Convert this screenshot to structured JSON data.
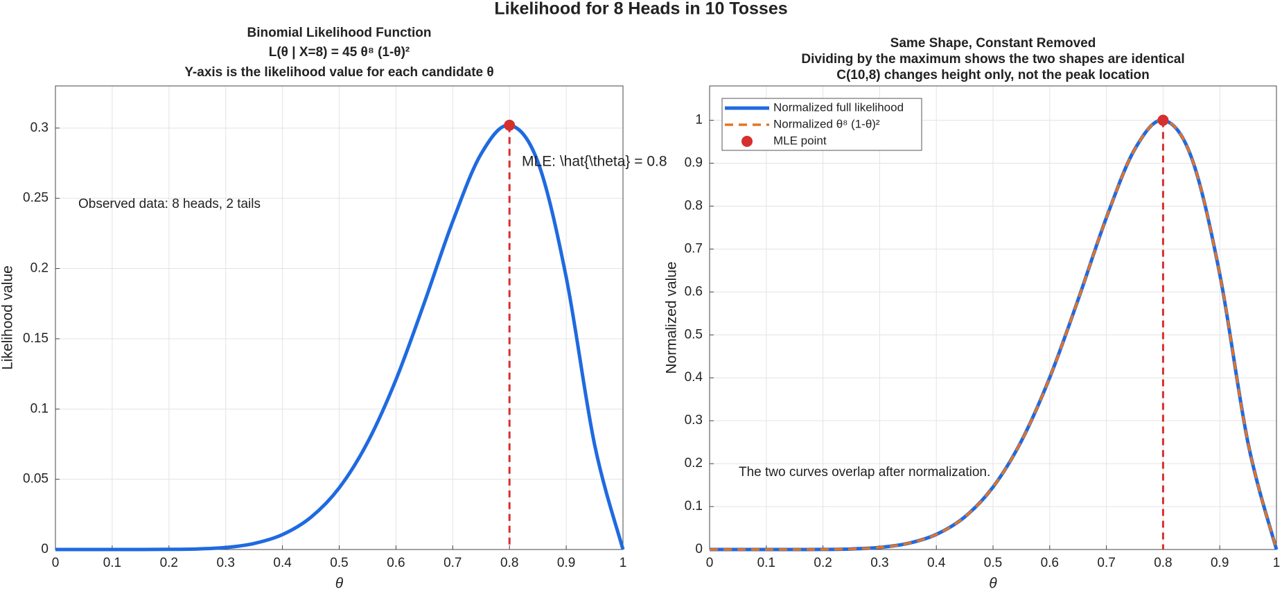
{
  "title": "Likelihood for 8 Heads in 10 Tosses",
  "chart_data": [
    {
      "type": "line",
      "title": [
        "Binomial Likelihood Function",
        "L(θ | X=8) = 45 θ⁸ (1-θ)²",
        "Y-axis is the likelihood value for each candidate θ"
      ],
      "xlabel": "θ",
      "ylabel": "Likelihood value",
      "x": [
        0,
        0.05,
        0.1,
        0.15,
        0.2,
        0.25,
        0.3,
        0.35,
        0.4,
        0.45,
        0.5,
        0.55,
        0.6,
        0.65,
        0.7,
        0.75,
        0.8,
        0.85,
        0.9,
        0.95,
        1
      ],
      "values": [
        0,
        0,
        0,
        0,
        0.0001,
        0.0004,
        0.0014,
        0.0043,
        0.0106,
        0.0229,
        0.0439,
        0.0763,
        0.1209,
        0.1757,
        0.2335,
        0.2816,
        0.302,
        0.2759,
        0.1937,
        0.0746,
        0
      ],
      "color": "#1f6ae0",
      "mle": {
        "x": 0.8,
        "y": 0.302,
        "color": "#d62f2f"
      },
      "annotations": [
        "MLE: \\hat{\\theta} = 0.8",
        "Observed data: 8 heads, 2 tails"
      ],
      "xlim": [
        0,
        1
      ],
      "xticks": [
        0,
        0.1,
        0.2,
        0.3,
        0.4,
        0.5,
        0.6,
        0.7,
        0.8,
        0.9,
        1
      ],
      "ylim": [
        0,
        0.33
      ],
      "yticks": [
        0,
        0.05,
        0.1,
        0.15,
        0.2,
        0.25,
        0.3
      ],
      "grid": true
    },
    {
      "type": "line",
      "title": [
        "Same Shape, Constant Removed",
        "Dividing by the maximum shows the two shapes are identical",
        "C(10,8) changes height only, not the peak location"
      ],
      "xlabel": "θ",
      "ylabel": "Normalized value",
      "x": [
        0,
        0.05,
        0.1,
        0.15,
        0.2,
        0.25,
        0.3,
        0.35,
        0.4,
        0.45,
        0.5,
        0.55,
        0.6,
        0.65,
        0.7,
        0.75,
        0.8,
        0.85,
        0.9,
        0.95,
        1
      ],
      "series": [
        {
          "name": "Normalized full likelihood",
          "color": "#1f6ae0",
          "style": "solid",
          "values": [
            0,
            0,
            0,
            0,
            0.0002,
            0.0013,
            0.0048,
            0.0142,
            0.0352,
            0.0758,
            0.1455,
            0.2527,
            0.4005,
            0.5817,
            0.7731,
            0.9324,
            1,
            0.9136,
            0.6414,
            0.2471,
            0
          ]
        },
        {
          "name": "Normalized θ⁸ (1-θ)²",
          "color": "#e8731f",
          "style": "dashed",
          "values": [
            0,
            0,
            0,
            0,
            0.0002,
            0.0013,
            0.0048,
            0.0142,
            0.0352,
            0.0758,
            0.1455,
            0.2527,
            0.4005,
            0.5817,
            0.7731,
            0.9324,
            1,
            0.9136,
            0.6414,
            0.2471,
            0
          ]
        }
      ],
      "mle": {
        "name": "MLE point",
        "x": 0.8,
        "y": 1,
        "color": "#d62f2f"
      },
      "annotations": [
        "The two curves overlap after normalization."
      ],
      "xlim": [
        0,
        1
      ],
      "xticks": [
        0,
        0.1,
        0.2,
        0.3,
        0.4,
        0.5,
        0.6,
        0.7,
        0.8,
        0.9,
        1
      ],
      "ylim": [
        0,
        1.08
      ],
      "yticks": [
        0,
        0.1,
        0.2,
        0.3,
        0.4,
        0.5,
        0.6,
        0.7,
        0.8,
        0.9,
        1
      ],
      "grid": true,
      "legend": "upper-left"
    }
  ]
}
